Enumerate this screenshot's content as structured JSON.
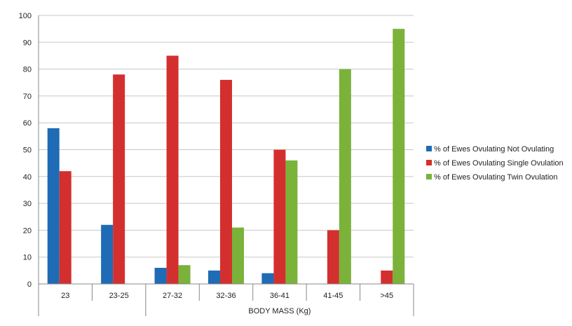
{
  "chart_data": {
    "type": "bar",
    "title": "",
    "xlabel": "BODY MASS (Kg)",
    "ylabel": "",
    "ylim": [
      0,
      100
    ],
    "yticks": [
      0,
      10,
      20,
      30,
      40,
      50,
      60,
      70,
      80,
      90,
      100
    ],
    "grid": true,
    "legend_position": "right",
    "categories": [
      "23",
      "23-25",
      "27-32",
      "32-36",
      "36-41",
      "41-45",
      ">45"
    ],
    "series": [
      {
        "name": "% of Ewes Ovulating Not Ovulating",
        "color": "#1f6bb5",
        "values": [
          58,
          22,
          6,
          5,
          4,
          0,
          0
        ]
      },
      {
        "name": "% of Ewes Ovulating Single Ovulation",
        "color": "#d42f2f",
        "values": [
          42,
          78,
          85,
          76,
          50,
          20,
          5
        ]
      },
      {
        "name": "% of Ewes Ovulating Twin Ovulation",
        "color": "#7ab23a",
        "values": [
          0,
          0,
          7,
          21,
          46,
          80,
          95
        ]
      }
    ]
  }
}
